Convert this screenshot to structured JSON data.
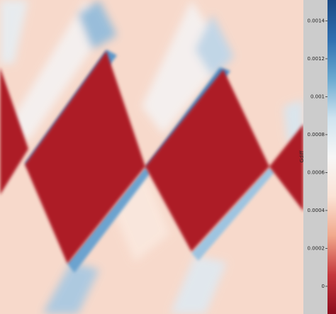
{
  "chart_data": {
    "type": "heatmap",
    "colorbar_label": "Gdiff",
    "clim": [
      -0.000146,
      0.00151
    ],
    "cticks": [
      0,
      0.0002,
      0.0004,
      0.0006,
      0.0008,
      0.001,
      0.0012,
      0.0014
    ],
    "colormap": [
      "#8e0c1e",
      "#c6373c",
      "#f1a88c",
      "#fbe3d6",
      "#f7f7f7",
      "#cfe3ef",
      "#6aa9d0",
      "#2f6fb0",
      "#1b4a85"
    ]
  }
}
